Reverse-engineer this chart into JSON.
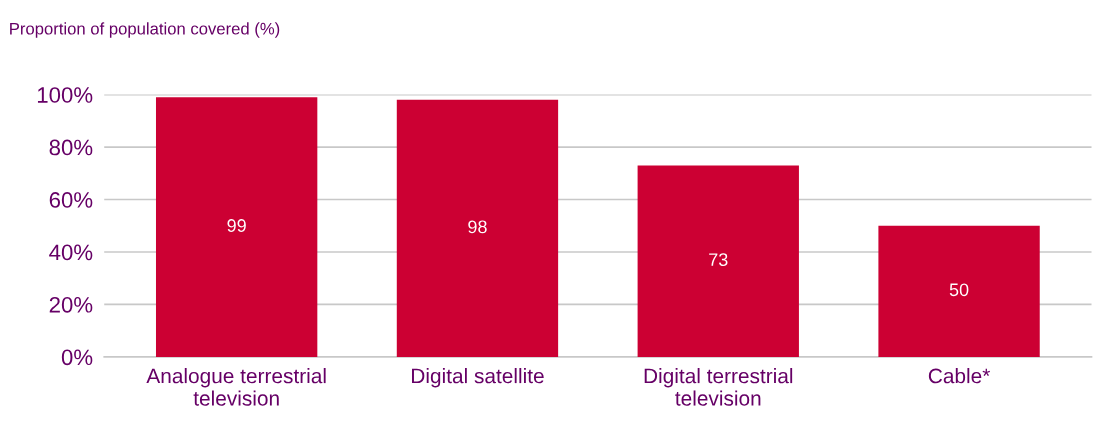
{
  "chart_data": {
    "type": "bar",
    "ylabel": "Proportion of population covered (%)",
    "categories": [
      "Analogue terrestrial\ntelevision",
      "Digital satellite",
      "Digital terrestrial\ntelevision",
      "Cable*"
    ],
    "values": [
      99,
      98,
      73,
      50
    ],
    "color": "#cc0033",
    "data_labels": true,
    "ylim": [
      0,
      100
    ],
    "yticks": [
      {
        "value": 0,
        "label": "0%"
      },
      {
        "value": 20,
        "label": "20%"
      },
      {
        "value": 40,
        "label": "40%"
      },
      {
        "value": 60,
        "label": "60%"
      },
      {
        "value": 80,
        "label": "80%"
      },
      {
        "value": 100,
        "label": "100%"
      }
    ],
    "grid": "y",
    "legend": false
  }
}
